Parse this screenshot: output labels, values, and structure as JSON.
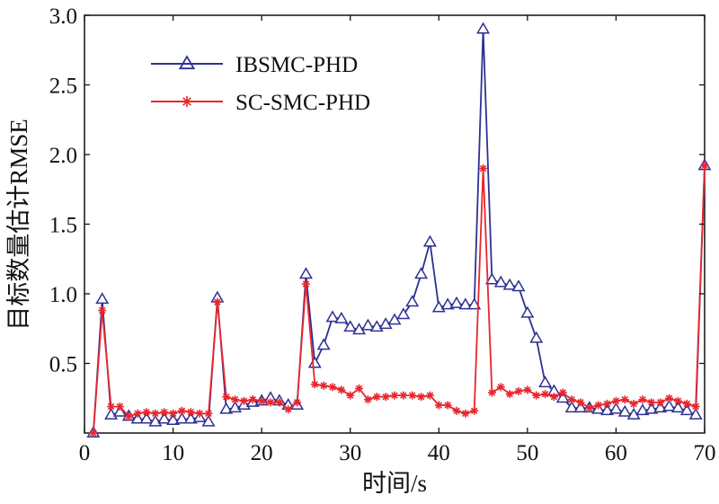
{
  "chart_data": {
    "type": "line",
    "xlabel": "时间/s",
    "ylabel": "目标数量估计RMSE",
    "xlim": [
      0,
      70
    ],
    "ylim": [
      0,
      3.0
    ],
    "xticks": [
      "0",
      "10",
      "20",
      "30",
      "40",
      "50",
      "60",
      "70"
    ],
    "yticks": [
      "0.5",
      "1.0",
      "1.5",
      "2.0",
      "2.5",
      "3.0"
    ],
    "legend_position": "top-left",
    "colors": {
      "ibsmc": "#2e3192",
      "scsmc": "#e8262d"
    },
    "x": [
      1,
      2,
      3,
      4,
      5,
      6,
      7,
      8,
      9,
      10,
      11,
      12,
      13,
      14,
      15,
      16,
      17,
      18,
      19,
      20,
      21,
      22,
      23,
      24,
      25,
      26,
      27,
      28,
      29,
      30,
      31,
      32,
      33,
      34,
      35,
      36,
      37,
      38,
      39,
      40,
      41,
      42,
      43,
      44,
      45,
      46,
      47,
      48,
      49,
      50,
      51,
      52,
      53,
      54,
      55,
      56,
      57,
      58,
      59,
      60,
      61,
      62,
      63,
      64,
      65,
      66,
      67,
      68,
      69,
      70
    ],
    "series": [
      {
        "name": "IBSMC-PHD",
        "marker": "triangle",
        "values": [
          0.0,
          0.96,
          0.13,
          0.15,
          0.12,
          0.1,
          0.1,
          0.08,
          0.1,
          0.09,
          0.1,
          0.1,
          0.11,
          0.08,
          0.97,
          0.17,
          0.18,
          0.2,
          0.22,
          0.23,
          0.25,
          0.23,
          0.2,
          0.2,
          1.14,
          0.5,
          0.63,
          0.83,
          0.82,
          0.76,
          0.74,
          0.77,
          0.76,
          0.78,
          0.81,
          0.85,
          0.94,
          1.14,
          1.37,
          0.9,
          0.92,
          0.93,
          0.92,
          0.92,
          2.9,
          1.1,
          1.08,
          1.06,
          1.05,
          0.86,
          0.68,
          0.36,
          0.3,
          0.25,
          0.18,
          0.18,
          0.18,
          0.17,
          0.16,
          0.17,
          0.15,
          0.13,
          0.16,
          0.17,
          0.18,
          0.19,
          0.18,
          0.16,
          0.13,
          1.92
        ]
      },
      {
        "name": "SC-SMC-PHD",
        "marker": "star",
        "values": [
          0.0,
          0.88,
          0.19,
          0.19,
          0.12,
          0.14,
          0.15,
          0.14,
          0.15,
          0.14,
          0.16,
          0.15,
          0.14,
          0.14,
          0.94,
          0.26,
          0.24,
          0.23,
          0.24,
          0.23,
          0.22,
          0.22,
          0.17,
          0.22,
          1.07,
          0.35,
          0.34,
          0.33,
          0.31,
          0.27,
          0.32,
          0.24,
          0.26,
          0.26,
          0.27,
          0.27,
          0.27,
          0.26,
          0.27,
          0.2,
          0.2,
          0.16,
          0.14,
          0.16,
          1.9,
          0.29,
          0.33,
          0.28,
          0.3,
          0.31,
          0.27,
          0.28,
          0.26,
          0.29,
          0.24,
          0.22,
          0.18,
          0.2,
          0.21,
          0.23,
          0.24,
          0.21,
          0.24,
          0.22,
          0.22,
          0.25,
          0.23,
          0.21,
          0.19,
          1.92
        ]
      }
    ]
  }
}
